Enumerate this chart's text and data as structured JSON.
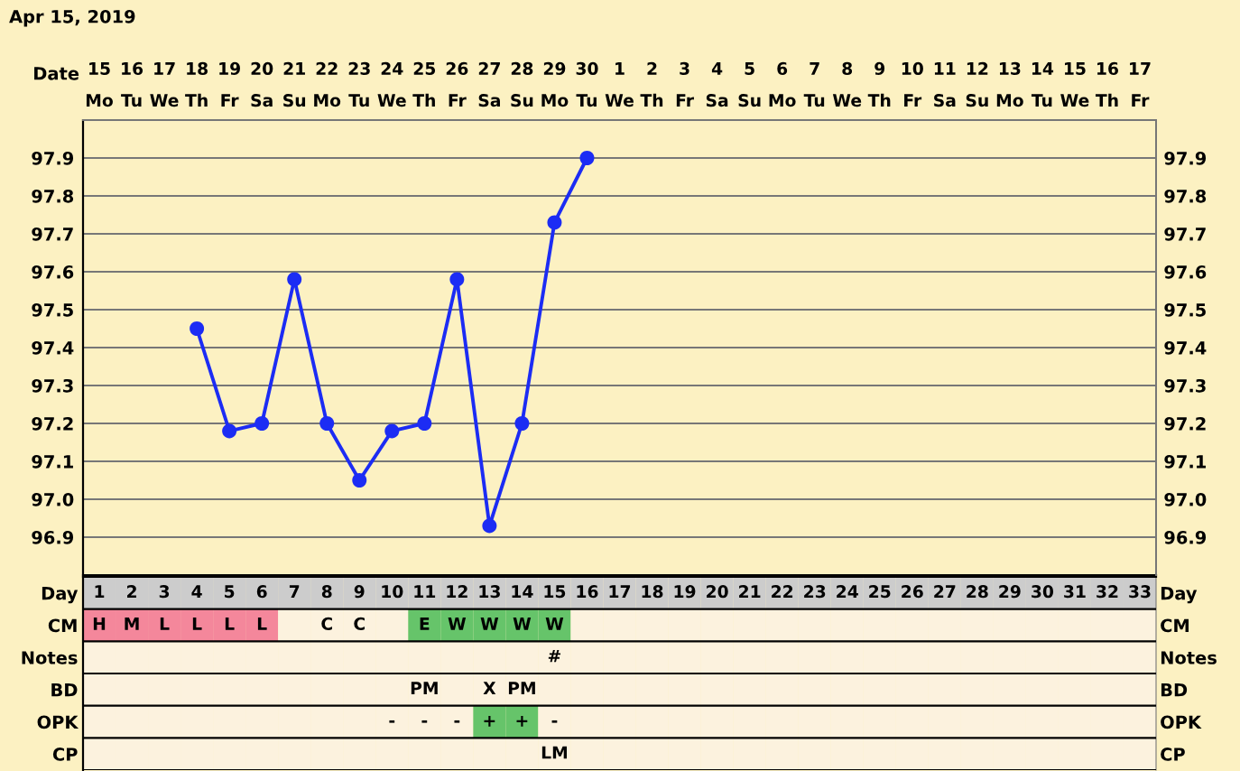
{
  "chart_data": [
    {
      "type": "line",
      "title": "Apr 15, 2019",
      "xlabel": "Date",
      "categories": [
        "15\nMo",
        "16\nTu",
        "17\nWe",
        "18\nTh",
        "19\nFr",
        "20\nSa",
        "21\nSu",
        "22\nMo",
        "23\nTu",
        "24\nWe",
        "25\nTh",
        "26\nFr",
        "27\nSa",
        "28\nSu",
        "29\nMo",
        "30\nTu",
        "1\nWe",
        "2\nTh",
        "3\nFr",
        "4\nSa",
        "5\nSu",
        "6\nMo",
        "7\nTu",
        "8\nWe",
        "9\nTh",
        "10\nFr",
        "11\nSa",
        "12\nSu",
        "13\nMo",
        "14\nTu",
        "15\nWe",
        "16\nTh",
        "17\nFr"
      ],
      "series": [
        {
          "color": "#1c2cf4",
          "values": [
            null,
            null,
            null,
            97.45,
            97.18,
            97.2,
            97.58,
            97.2,
            97.05,
            97.18,
            97.2,
            97.58,
            96.93,
            97.2,
            97.73,
            97.9,
            null,
            null,
            null,
            null,
            null,
            null,
            null,
            null,
            null,
            null,
            null,
            null,
            null,
            null,
            null,
            null,
            null
          ]
        }
      ],
      "ylim": [
        96.8,
        98.0
      ],
      "yticks": [
        96.9,
        {
          "value": 97,
          "label": "97.0"
        },
        97.1,
        97.2,
        97.3,
        97.4,
        97.5,
        97.6,
        97.7,
        97.8,
        97.9
      ],
      "y2lim": [
        96.8,
        98.0
      ],
      "y2ticks": [
        96.9,
        {
          "value": 97,
          "label": "97.0"
        },
        97.1,
        97.2,
        97.3,
        97.4,
        97.5,
        97.6,
        97.7,
        97.8,
        97.9
      ],
      "grid": true,
      "marker": "circle",
      "line_style": "solid"
    },
    {
      "type": "heatmap",
      "categories": [
        "1",
        "2",
        "3",
        "4",
        "5",
        "6",
        "7",
        "8",
        "9",
        "10",
        "11",
        "12",
        "13",
        "14",
        "15",
        "16",
        "17",
        "18",
        "19",
        "20",
        "21",
        "22",
        "23",
        "24",
        "25",
        "26",
        "27",
        "28",
        "29",
        "30",
        "31",
        "32",
        "33"
      ],
      "y_categories": [
        "Day",
        "CM",
        "Notes",
        "BD",
        "OPK",
        "CP"
      ],
      "y2_categories": [
        "Day",
        "CM",
        "Notes",
        "BD",
        "OPK",
        "CP"
      ],
      "cells": [
        [
          null,
          null,
          null,
          null,
          null,
          null,
          null,
          null,
          null,
          null,
          null,
          null,
          null,
          null,
          null,
          null,
          null,
          null,
          null,
          null,
          null,
          null,
          null,
          null,
          null,
          null,
          null,
          null,
          null,
          null,
          null,
          null,
          null
        ],
        [
          null,
          null,
          null,
          null,
          null,
          null,
          null,
          null,
          null,
          null,
          null,
          null,
          null,
          null,
          null,
          null,
          null,
          null,
          null,
          null,
          null,
          null,
          null,
          null,
          null,
          null,
          null,
          null,
          null,
          null,
          null,
          null,
          null
        ],
        [
          null,
          null,
          null,
          null,
          null,
          null,
          null,
          null,
          null,
          null,
          null,
          null,
          null,
          null,
          null,
          null,
          null,
          null,
          null,
          null,
          null,
          null,
          null,
          null,
          null,
          null,
          null,
          null,
          null,
          null,
          null,
          null,
          null
        ],
        [
          null,
          null,
          null,
          null,
          null,
          null,
          null,
          null,
          null,
          null,
          null,
          null,
          null,
          null,
          null,
          null,
          null,
          null,
          null,
          null,
          null,
          null,
          null,
          null,
          null,
          null,
          null,
          null,
          null,
          null,
          null,
          null,
          null
        ],
        [
          null,
          null,
          null,
          null,
          null,
          null,
          null,
          null,
          null,
          null,
          null,
          null,
          null,
          null,
          null,
          null,
          null,
          null,
          null,
          null,
          null,
          null,
          null,
          null,
          null,
          null,
          null,
          null,
          null,
          null,
          null,
          null,
          null
        ],
        [
          null,
          null,
          null,
          null,
          null,
          null,
          null,
          null,
          null,
          null,
          null,
          null,
          null,
          null,
          null,
          null,
          null,
          null,
          null,
          null,
          null,
          null,
          null,
          null,
          null,
          null,
          null,
          null,
          null,
          null,
          null,
          null,
          null
        ]
      ],
      "cell_labels": [
        [
          null,
          null,
          null,
          null,
          null,
          null,
          null,
          null,
          null,
          null,
          null,
          null,
          null,
          null,
          null,
          null,
          null,
          null,
          null,
          null,
          null,
          null,
          null,
          null,
          null,
          null,
          null,
          null,
          null,
          null,
          null,
          null,
          null
        ],
        [
          "H",
          "M",
          "L",
          "L",
          "L",
          "L",
          null,
          "C",
          "C",
          null,
          "E",
          "W",
          "W",
          "W",
          "W",
          null,
          null,
          null,
          null,
          null,
          null,
          null,
          null,
          null,
          null,
          null,
          null,
          null,
          null,
          null,
          null,
          null,
          null
        ],
        [
          null,
          null,
          null,
          null,
          null,
          null,
          null,
          null,
          null,
          null,
          null,
          null,
          null,
          null,
          "#",
          null,
          null,
          null,
          null,
          null,
          null,
          null,
          null,
          null,
          null,
          null,
          null,
          null,
          null,
          null,
          null,
          null,
          null
        ],
        [
          null,
          null,
          null,
          null,
          null,
          null,
          null,
          null,
          null,
          null,
          "PM",
          null,
          "X",
          "PM",
          null,
          null,
          null,
          null,
          null,
          null,
          null,
          null,
          null,
          null,
          null,
          null,
          null,
          null,
          null,
          null,
          null,
          null,
          null
        ],
        [
          null,
          null,
          null,
          null,
          null,
          null,
          null,
          null,
          null,
          "-",
          "-",
          "-",
          "+",
          "+",
          "-",
          null,
          null,
          null,
          null,
          null,
          null,
          null,
          null,
          null,
          null,
          null,
          null,
          null,
          null,
          null,
          null,
          null,
          null
        ],
        [
          null,
          null,
          null,
          null,
          null,
          null,
          null,
          null,
          null,
          null,
          null,
          null,
          null,
          null,
          "LM",
          null,
          null,
          null,
          null,
          null,
          null,
          null,
          null,
          null,
          null,
          null,
          null,
          null,
          null,
          null,
          null,
          null,
          null
        ]
      ],
      "color": "#fcf2de",
      "colors": [
        [
          "#cccccc",
          "#cccccc",
          "#cccccc",
          "#cccccc",
          "#cccccc",
          "#cccccc",
          "#cccccc",
          "#cccccc",
          "#cccccc",
          "#cccccc",
          "#cccccc",
          "#cccccc",
          "#cccccc",
          "#cccccc",
          "#cccccc",
          "#cccccc",
          "#cccccc",
          "#cccccc",
          "#cccccc",
          "#cccccc",
          "#cccccc",
          "#cccccc",
          "#cccccc",
          "#cccccc",
          "#cccccc",
          "#cccccc",
          "#cccccc",
          "#cccccc",
          "#cccccc",
          "#cccccc",
          "#cccccc",
          "#cccccc",
          "#cccccc"
        ],
        [
          "#f4879b",
          "#f4879b",
          "#f4879b",
          "#f4879b",
          "#f4879b",
          "#f4879b",
          null,
          null,
          null,
          null,
          "#66c46a",
          "#66c46a",
          "#66c46a",
          "#66c46a",
          "#66c46a",
          null,
          null,
          null,
          null,
          null,
          null,
          null,
          null,
          null,
          null,
          null,
          null,
          null,
          null,
          null,
          null,
          null,
          null
        ],
        [
          null,
          null,
          null,
          null,
          null,
          null,
          null,
          null,
          null,
          null,
          null,
          null,
          null,
          null,
          null,
          null,
          null,
          null,
          null,
          null,
          null,
          null,
          null,
          null,
          null,
          null,
          null,
          null,
          null,
          null,
          null,
          null,
          null
        ],
        [
          null,
          null,
          null,
          null,
          null,
          null,
          null,
          null,
          null,
          null,
          null,
          null,
          null,
          null,
          null,
          null,
          null,
          null,
          null,
          null,
          null,
          null,
          null,
          null,
          null,
          null,
          null,
          null,
          null,
          null,
          null,
          null,
          null
        ],
        [
          null,
          null,
          null,
          null,
          null,
          null,
          null,
          null,
          null,
          null,
          null,
          null,
          "#66c46a",
          "#66c46a",
          null,
          null,
          null,
          null,
          null,
          null,
          null,
          null,
          null,
          null,
          null,
          null,
          null,
          null,
          null,
          null,
          null,
          null,
          null
        ],
        [
          null,
          null,
          null,
          null,
          null,
          null,
          null,
          null,
          null,
          null,
          null,
          null,
          null,
          null,
          null,
          null,
          null,
          null,
          null,
          null,
          null,
          null,
          null,
          null,
          null,
          null,
          null,
          null,
          null,
          null,
          null,
          null,
          null
        ]
      ],
      "grid": true
    }
  ]
}
